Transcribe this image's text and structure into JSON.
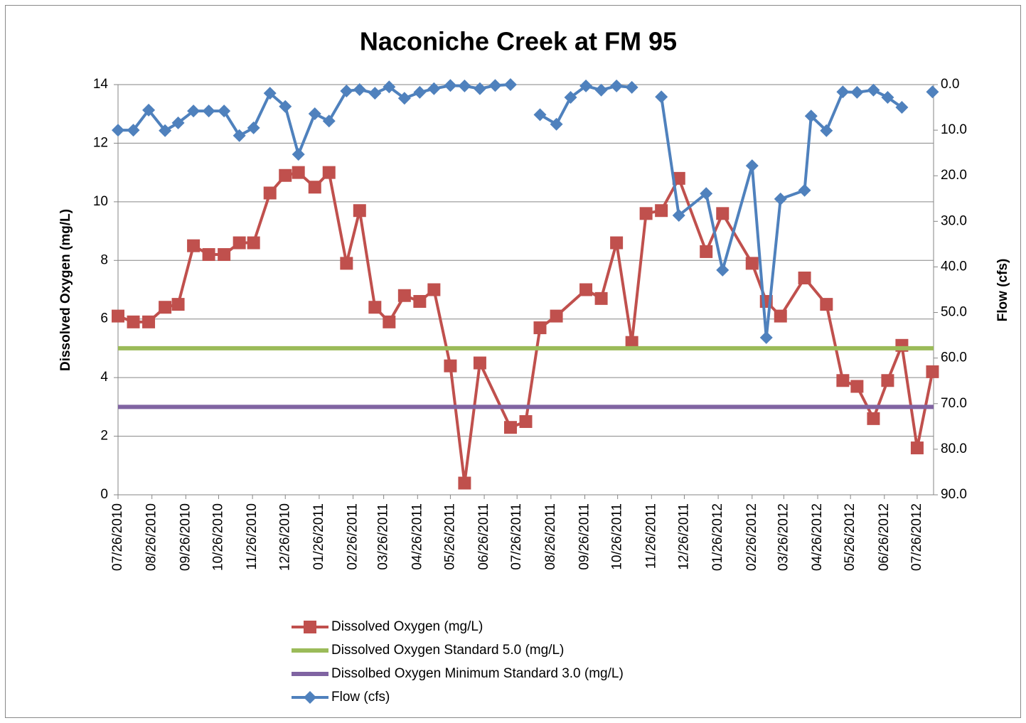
{
  "chart_data": {
    "type": "line",
    "title": "Naconiche Creek at FM 95",
    "ylabel": "Dissolved Oxygen (mg/L)",
    "y2label": "Flow (cfs)",
    "xlim": [
      "2010-07-26",
      "2012-08-10"
    ],
    "xticks": [
      {
        "value": "2010-07-26",
        "label": "07/26/2010"
      },
      {
        "value": "2010-08-26",
        "label": "08/26/2010"
      },
      {
        "value": "2010-09-26",
        "label": "09/26/2010"
      },
      {
        "value": "2010-10-26",
        "label": "10/26/2010"
      },
      {
        "value": "2010-11-26",
        "label": "11/26/2010"
      },
      {
        "value": "2010-12-26",
        "label": "12/26/2010"
      },
      {
        "value": "2011-01-26",
        "label": "01/26/2011"
      },
      {
        "value": "2011-02-26",
        "label": "02/26/2011"
      },
      {
        "value": "2011-03-26",
        "label": "03/26/2011"
      },
      {
        "value": "2011-04-26",
        "label": "04/26/2011"
      },
      {
        "value": "2011-05-26",
        "label": "05/26/2011"
      },
      {
        "value": "2011-06-26",
        "label": "06/26/2011"
      },
      {
        "value": "2011-07-26",
        "label": "07/26/2011"
      },
      {
        "value": "2011-08-26",
        "label": "08/26/2011"
      },
      {
        "value": "2011-09-26",
        "label": "09/26/2011"
      },
      {
        "value": "2011-10-26",
        "label": "10/26/2011"
      },
      {
        "value": "2011-11-26",
        "label": "11/26/2011"
      },
      {
        "value": "2011-12-26",
        "label": "12/26/2011"
      },
      {
        "value": "2012-01-26",
        "label": "01/26/2012"
      },
      {
        "value": "2012-02-26",
        "label": "02/26/2012"
      },
      {
        "value": "2012-03-26",
        "label": "03/26/2012"
      },
      {
        "value": "2012-04-26",
        "label": "04/26/2012"
      },
      {
        "value": "2012-05-26",
        "label": "05/26/2012"
      },
      {
        "value": "2012-06-26",
        "label": "06/26/2012"
      },
      {
        "value": "2012-07-26",
        "label": "07/26/2012"
      }
    ],
    "ylim": [
      0,
      14
    ],
    "yticks": [
      0,
      2,
      4,
      6,
      8,
      10,
      12,
      14
    ],
    "y2lim": [
      0,
      90
    ],
    "y2_reversed": true,
    "y2ticks": [
      {
        "value": 0,
        "label": "0.0"
      },
      {
        "value": 10,
        "label": "10.0"
      },
      {
        "value": 20,
        "label": "20.0"
      },
      {
        "value": 30,
        "label": "30.0"
      },
      {
        "value": 40,
        "label": "40.0"
      },
      {
        "value": 50,
        "label": "50.0"
      },
      {
        "value": 60,
        "label": "60.0"
      },
      {
        "value": 70,
        "label": "70.0"
      },
      {
        "value": 80,
        "label": "80.0"
      },
      {
        "value": 90,
        "label": "90.0"
      }
    ],
    "grid": true,
    "legend": "bottom",
    "series": [
      {
        "name": "Dissolved Oxygen (mg/L)",
        "color": "#c0504d",
        "marker": "square",
        "x": [
          "2010-07-26",
          "2010-08-09",
          "2010-08-23",
          "2010-09-07",
          "2010-09-19",
          "2010-10-03",
          "2010-10-17",
          "2010-10-31",
          "2010-11-14",
          "2010-11-27",
          "2010-12-12",
          "2010-12-26",
          "2011-01-07",
          "2011-01-22",
          "2011-02-04",
          "2011-02-20",
          "2011-03-04",
          "2011-03-18",
          "2011-03-31",
          "2011-04-14",
          "2011-04-28",
          "2011-05-11",
          "2011-05-26",
          "2011-06-08",
          "2011-06-22",
          "2011-07-20",
          "2011-08-03",
          "2011-08-16",
          "2011-08-31",
          "2011-09-27",
          "2011-10-11",
          "2011-10-25",
          "2011-11-08",
          "2011-11-21",
          "2011-12-05",
          "2011-12-21",
          "2012-01-15",
          "2012-01-30",
          "2012-02-26",
          "2012-03-10",
          "2012-03-23",
          "2012-04-14",
          "2012-05-04",
          "2012-05-19",
          "2012-06-01",
          "2012-06-16",
          "2012-06-29",
          "2012-07-12",
          "2012-07-26",
          "2012-08-09"
        ],
        "values": [
          6.1,
          5.9,
          5.9,
          6.4,
          6.5,
          8.5,
          8.2,
          8.2,
          8.6,
          8.6,
          10.3,
          10.9,
          11.0,
          10.5,
          11.0,
          7.9,
          9.7,
          6.4,
          5.9,
          6.8,
          6.6,
          7.0,
          4.4,
          0.4,
          4.5,
          2.3,
          2.5,
          5.7,
          6.1,
          7.0,
          6.7,
          8.6,
          5.2,
          9.6,
          9.7,
          10.8,
          8.3,
          9.6,
          7.9,
          6.6,
          6.1,
          7.4,
          6.5,
          3.9,
          3.7,
          2.6,
          3.9,
          5.1,
          1.6,
          4.2
        ]
      },
      {
        "name": "Dissolved Oxygen Standard 5.0 (mg/L)",
        "color": "#9bbb59",
        "value": 5.0
      },
      {
        "name": "Dissolbed Oxygen Minimum Standard 3.0 (mg/L)",
        "color": "#8064a2",
        "value": 3.0
      },
      {
        "name": "Flow (cfs)",
        "color": "#4f81bd",
        "marker": "diamond",
        "axis": "y2",
        "x": [
          "2010-07-26",
          "2010-08-09",
          "2010-08-23",
          "2010-09-07",
          "2010-09-19",
          "2010-10-03",
          "2010-10-17",
          "2010-10-31",
          "2010-11-14",
          "2010-11-27",
          "2010-12-12",
          "2010-12-26",
          "2011-01-07",
          "2011-01-22",
          "2011-02-04",
          "2011-02-20",
          "2011-03-04",
          "2011-03-18",
          "2011-03-31",
          "2011-04-14",
          "2011-04-28",
          "2011-05-11",
          "2011-05-26",
          "2011-06-08",
          "2011-06-22",
          "2011-07-06",
          "2011-07-20",
          "2011-08-03",
          "2011-08-16",
          "2011-08-31",
          "2011-09-13",
          "2011-09-27",
          "2011-10-11",
          "2011-10-25",
          "2011-11-08",
          "2011-11-21",
          "2011-12-05",
          "2011-12-21",
          "2012-01-15",
          "2012-01-30",
          "2012-02-26",
          "2012-03-10",
          "2012-03-23",
          "2012-04-14",
          "2012-04-20",
          "2012-05-04",
          "2012-05-19",
          "2012-06-01",
          "2012-06-16",
          "2012-06-29",
          "2012-07-12",
          "2012-07-26",
          "2012-08-09"
        ],
        "values": [
          10.0,
          10.0,
          5.6,
          10.1,
          8.4,
          5.8,
          5.8,
          5.8,
          11.2,
          9.5,
          1.9,
          4.8,
          15.3,
          6.4,
          8.0,
          1.4,
          1.1,
          1.9,
          0.5,
          3.0,
          1.7,
          0.9,
          0.2,
          0.3,
          0.9,
          0.2,
          0.0,
          null,
          6.6,
          8.7,
          2.8,
          0.3,
          1.2,
          0.3,
          0.6,
          null,
          2.7,
          28.7,
          23.9,
          40.7,
          17.8,
          55.5,
          25.1,
          23.2,
          6.9,
          10.1,
          1.6,
          1.7,
          1.2,
          2.8,
          5.0,
          null,
          1.6
        ]
      }
    ]
  }
}
